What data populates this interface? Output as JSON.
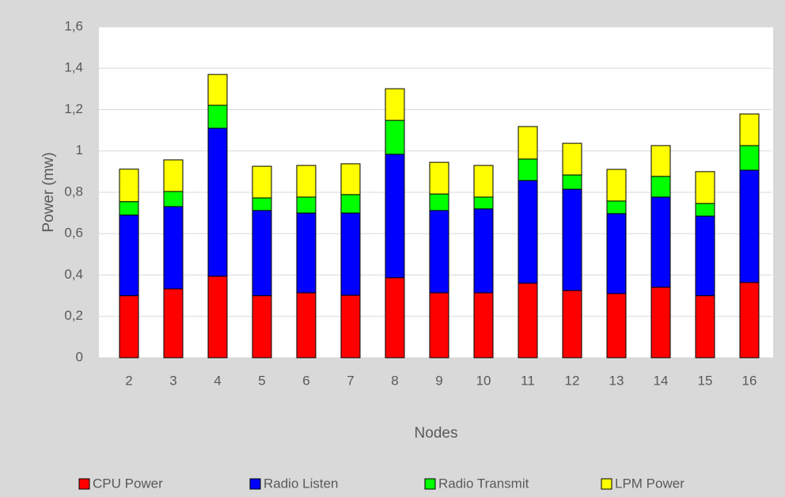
{
  "chart_data": {
    "type": "stacked_bar",
    "x_label": "Nodes",
    "y_label": "Power (mw)",
    "categories": [
      "2",
      "3",
      "4",
      "5",
      "6",
      "7",
      "8",
      "9",
      "10",
      "11",
      "12",
      "13",
      "14",
      "15",
      "16"
    ],
    "series": [
      {
        "name": "CPU Power",
        "color": "#ff0000",
        "values": [
          0.3,
          0.333,
          0.394,
          0.3,
          0.314,
          0.302,
          0.387,
          0.314,
          0.314,
          0.36,
          0.325,
          0.31,
          0.341,
          0.3,
          0.364
        ]
      },
      {
        "name": "Radio Listen",
        "color": "#0000ff",
        "values": [
          0.39,
          0.398,
          0.716,
          0.412,
          0.386,
          0.398,
          0.597,
          0.398,
          0.406,
          0.497,
          0.49,
          0.387,
          0.436,
          0.385,
          0.543
        ]
      },
      {
        "name": "Radio Transmit",
        "color": "#00ff00",
        "values": [
          0.065,
          0.073,
          0.111,
          0.061,
          0.077,
          0.089,
          0.164,
          0.08,
          0.057,
          0.104,
          0.069,
          0.061,
          0.1,
          0.061,
          0.119
        ]
      },
      {
        "name": "LPM Power",
        "color": "#ffff00",
        "values": [
          0.157,
          0.153,
          0.149,
          0.153,
          0.153,
          0.149,
          0.153,
          0.153,
          0.153,
          0.157,
          0.153,
          0.153,
          0.149,
          0.154,
          0.153
        ]
      }
    ],
    "ylim": [
      0,
      1.6
    ],
    "yticks": [
      0,
      {
        "value": 0.2,
        "label": "0,2"
      },
      {
        "value": 0.4,
        "label": "0,4"
      },
      {
        "value": 0.6,
        "label": "0,6"
      },
      {
        "value": 0.8,
        "label": "0,8"
      },
      1,
      {
        "value": 1.2,
        "label": "1,2"
      },
      {
        "value": 1.4,
        "label": "1,4"
      },
      {
        "value": 1.6,
        "label": "1,6"
      }
    ],
    "grid": true,
    "legend": "bottom"
  }
}
